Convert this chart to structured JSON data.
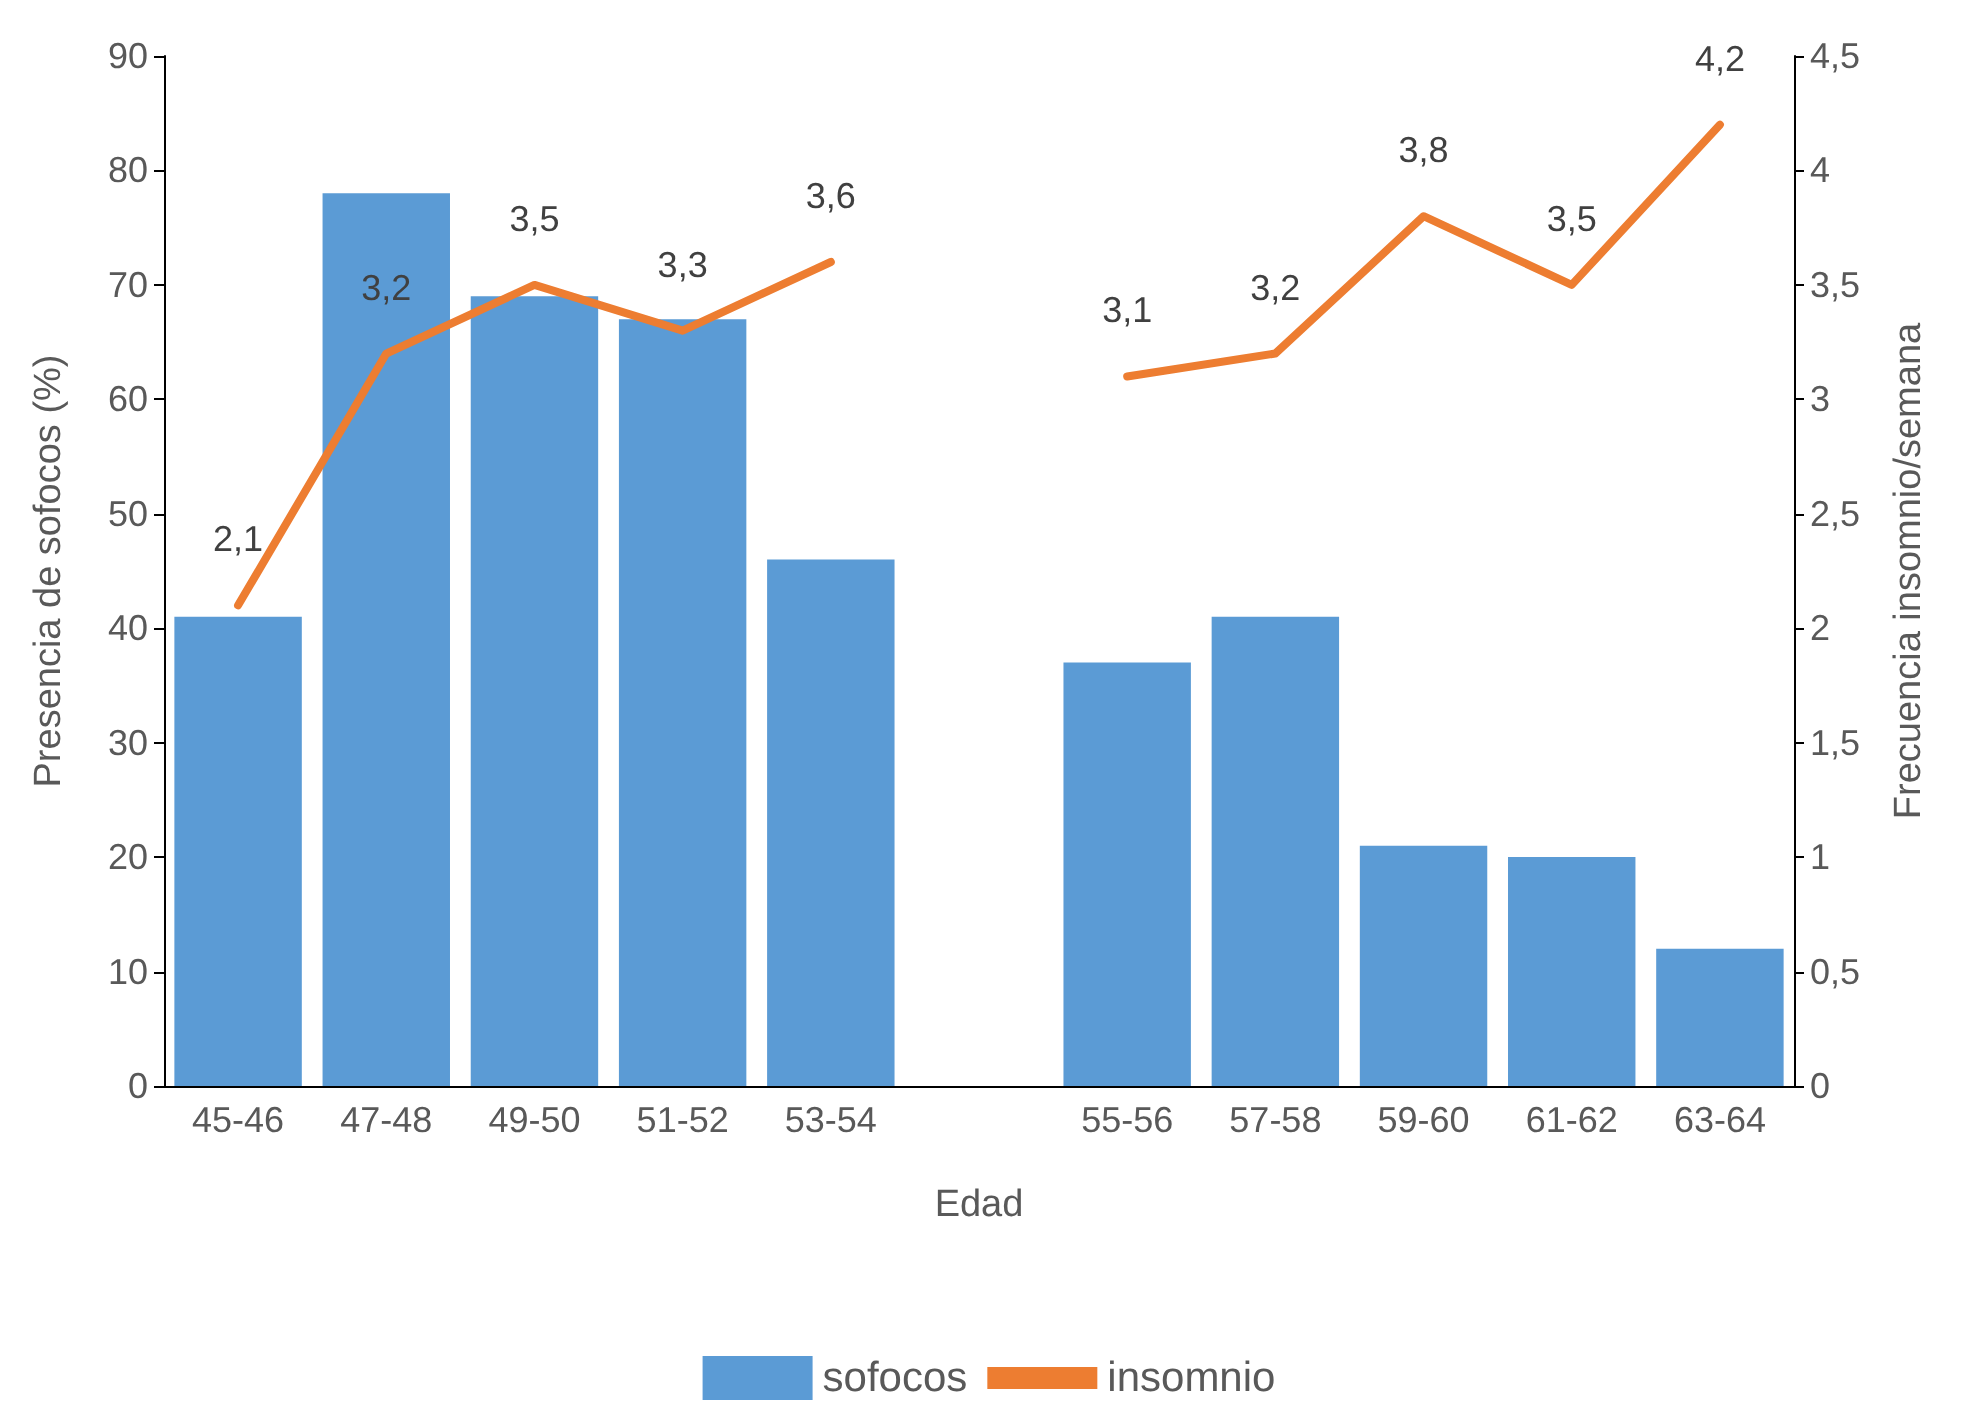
{
  "chart_data": {
    "type": "bar",
    "xlabel": "Edad",
    "ylabel": "Presencia de sofocos (%)",
    "y2label": "Frecuencia insomnio/semana",
    "categories": [
      "45-46",
      "47-48",
      "49-50",
      "51-52",
      "53-54",
      null,
      "55-56",
      "57-58",
      "59-60",
      "61-62",
      "63-64"
    ],
    "series": [
      {
        "name": "sofocos",
        "color": "#5b9bd5",
        "values": [
          41,
          78,
          69,
          67,
          46,
          null,
          37,
          41,
          21,
          20,
          12
        ]
      },
      {
        "name": "insomnio",
        "type": "line",
        "axis": "y2",
        "color": "#ed7d31",
        "marker": "none",
        "line_style": "solid",
        "values": [
          2.1,
          3.2,
          3.5,
          3.3,
          3.6,
          null,
          3.1,
          3.2,
          3.8,
          3.5,
          4.2
        ],
        "value_labels": [
          "2,1",
          "3,2",
          "3,5",
          "3,3",
          "3,6",
          null,
          "3,1",
          "3,2",
          "3,8",
          "3,5",
          "4,2"
        ]
      }
    ],
    "ylim": [
      0,
      90
    ],
    "yticks": [
      0,
      10,
      20,
      30,
      40,
      50,
      60,
      70,
      80,
      90
    ],
    "y2lim": [
      0,
      4.5
    ],
    "y2ticks": [
      0,
      {
        "value": 0.5,
        "label": "0,5"
      },
      1,
      {
        "value": 1.5,
        "label": "1,5"
      },
      2,
      {
        "value": 2.5,
        "label": "2,5"
      },
      3,
      {
        "value": 3.5,
        "label": "3,5"
      },
      4,
      {
        "value": 4.5,
        "label": "4,5"
      }
    ],
    "grid": false,
    "legend": "bottom"
  }
}
